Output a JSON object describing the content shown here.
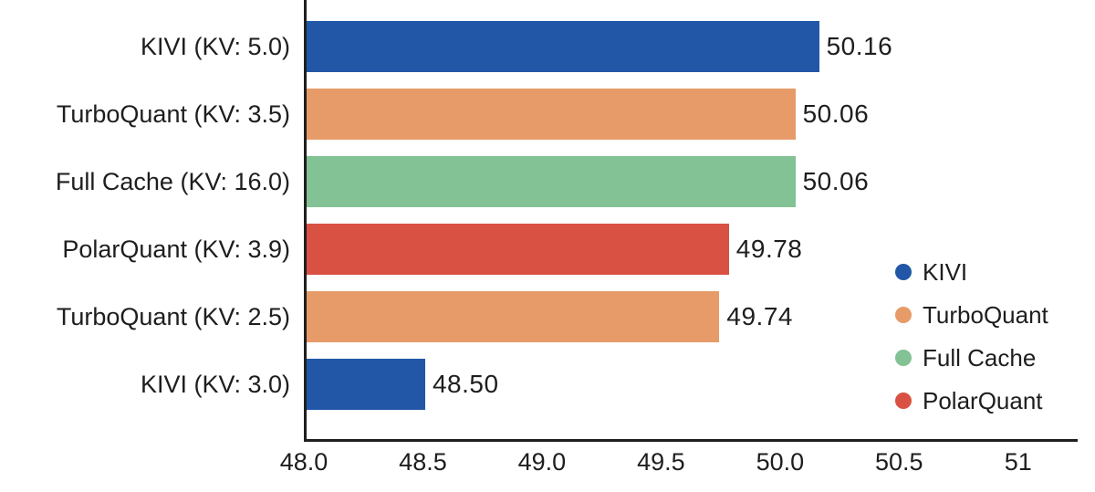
{
  "figure": {
    "background": "#ffffff",
    "text_color": "#1e1e1e",
    "axis_color": "#1f1f1f"
  },
  "chart_data": {
    "type": "bar",
    "orientation": "horizontal",
    "title": "",
    "xlabel": "",
    "ylabel": "",
    "categories": [
      "KIVI (KV: 5.0)",
      "TurboQuant (KV: 3.5)",
      "Full Cache (KV: 16.0)",
      "PolarQuant (KV: 3.9)",
      "TurboQuant (KV: 2.5)",
      "KIVI (KV: 3.0)"
    ],
    "values": [
      50.16,
      50.06,
      50.06,
      49.78,
      49.74,
      48.5
    ],
    "value_labels": [
      "50.16",
      "50.06",
      "50.06",
      "49.78",
      "49.74",
      "48.50"
    ],
    "bar_series": [
      "KIVI",
      "TurboQuant",
      "Full Cache",
      "PolarQuant",
      "TurboQuant",
      "KIVI"
    ],
    "bar_colors": [
      "#2157a6",
      "#e69b68",
      "#82c294",
      "#d95142",
      "#e69b68",
      "#2157a6"
    ],
    "xlim": [
      48.0,
      51.25
    ],
    "x_ticks": [
      48.0,
      48.5,
      49.0,
      49.5,
      50.0,
      50.5,
      51.0
    ],
    "x_tick_labels": [
      "48.0",
      "48.5",
      "49.0",
      "49.5",
      "50.0",
      "50.5",
      "51"
    ],
    "grid": false,
    "legend": {
      "position": "lower-right",
      "entries": [
        {
          "label": "KIVI",
          "color": "#2157a6"
        },
        {
          "label": "TurboQuant",
          "color": "#e69b68"
        },
        {
          "label": "Full Cache",
          "color": "#82c294"
        },
        {
          "label": "PolarQuant",
          "color": "#d95142"
        }
      ]
    }
  }
}
